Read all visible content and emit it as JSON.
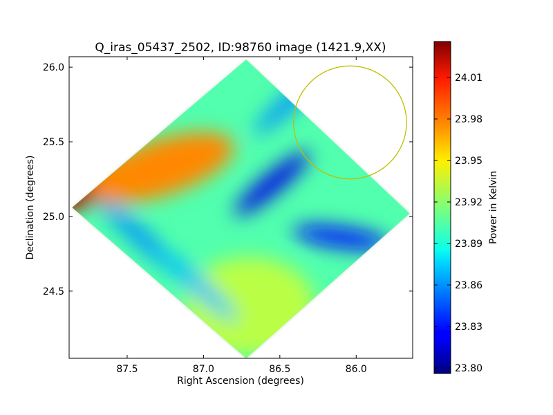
{
  "chart_data": {
    "type": "heatmap",
    "title": "Q_iras_05437_2502, ID:98760 image (1421.9,XX)",
    "xlabel": "Right Ascension (degrees)",
    "ylabel": "Declination (degrees)",
    "xlim": [
      87.88,
      85.63
    ],
    "ylim": [
      24.05,
      26.07
    ],
    "x_ticks": [
      {
        "value": 87.5,
        "label": "87.5"
      },
      {
        "value": 87.0,
        "label": "87.0"
      },
      {
        "value": 86.5,
        "label": "86.5"
      },
      {
        "value": 86.0,
        "label": "86.0"
      }
    ],
    "y_ticks": [
      {
        "value": 24.5,
        "label": "24.5"
      },
      {
        "value": 25.0,
        "label": "25.0"
      },
      {
        "value": 25.5,
        "label": "25.5"
      },
      {
        "value": 26.0,
        "label": "26.0"
      }
    ],
    "colorbar": {
      "label": "Power in Kelvin",
      "range": [
        23.796,
        24.036
      ],
      "colormap": "jet",
      "ticks": [
        {
          "value": 23.8,
          "label": "23.80"
        },
        {
          "value": 23.83,
          "label": "23.83"
        },
        {
          "value": 23.86,
          "label": "23.86"
        },
        {
          "value": 23.89,
          "label": "23.89"
        },
        {
          "value": 23.92,
          "label": "23.92"
        },
        {
          "value": 23.95,
          "label": "23.95"
        },
        {
          "value": 23.98,
          "label": "23.98"
        },
        {
          "value": 24.01,
          "label": "24.01"
        }
      ]
    },
    "map_footprint": {
      "shape": "diamond",
      "corners_ra_dec": [
        [
          86.72,
          26.05
        ],
        [
          85.65,
          25.02
        ],
        [
          86.72,
          24.05
        ],
        [
          87.86,
          25.06
        ]
      ],
      "background_level": 23.905
    },
    "features": [
      {
        "type": "hot-lobe",
        "ra": 87.55,
        "dec": 25.28,
        "peak": 24.02
      },
      {
        "type": "warm-region",
        "ra": 86.7,
        "dec": 24.15,
        "peak": 23.95
      },
      {
        "type": "cold-lobe",
        "ra": 86.55,
        "dec": 25.22,
        "peak": 23.82
      },
      {
        "type": "cold-lobe",
        "ra": 86.1,
        "dec": 24.86,
        "peak": 23.83
      },
      {
        "type": "cold-edge",
        "ra": 86.4,
        "dec": 25.8,
        "peak": 23.86
      },
      {
        "type": "cold-edge",
        "ra": 87.4,
        "dec": 24.85,
        "peak": 23.86
      },
      {
        "type": "cold-edge",
        "ra": 87.05,
        "dec": 24.55,
        "peak": 23.87
      }
    ],
    "annotations": [
      {
        "type": "circle",
        "center_ra": 86.04,
        "center_dec": 25.63,
        "radius_deg": 0.37,
        "color": "#bfbf00"
      }
    ]
  }
}
